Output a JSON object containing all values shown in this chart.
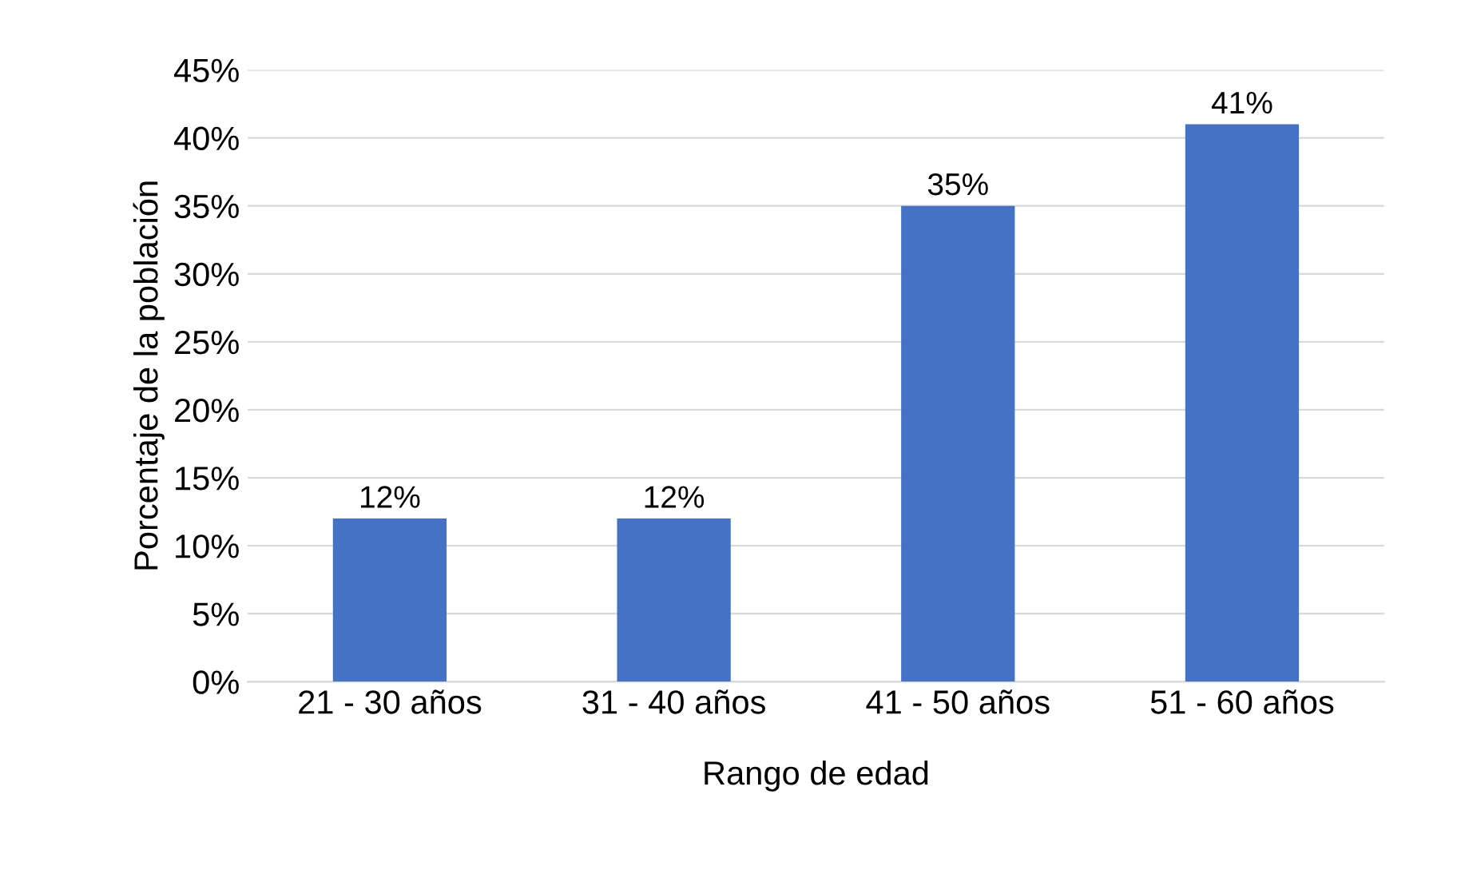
{
  "chart_data": {
    "type": "bar",
    "xlabel": "Rango de edad",
    "ylabel": "Porcentaje de la población",
    "categories": [
      "21 - 30 años",
      "31 - 40 años",
      "41 - 50 años",
      "51 - 60 años"
    ],
    "values": [
      12,
      12,
      35,
      41
    ],
    "color": "#4472c4",
    "value_labels": [
      "12%",
      "12%",
      "35%",
      "41%"
    ],
    "ylim": [
      0,
      45
    ],
    "yticks": [
      {
        "value": 0,
        "label": "0%"
      },
      {
        "value": 5,
        "label": "5%"
      },
      {
        "value": 10,
        "label": "10%"
      },
      {
        "value": 15,
        "label": "15%"
      },
      {
        "value": 20,
        "label": "20%"
      },
      {
        "value": 25,
        "label": "25%"
      },
      {
        "value": 30,
        "label": "30%"
      },
      {
        "value": 35,
        "label": "35%"
      },
      {
        "value": 40,
        "label": "40%"
      },
      {
        "value": 45,
        "label": "45%"
      }
    ],
    "grid": "y",
    "legend": false
  }
}
